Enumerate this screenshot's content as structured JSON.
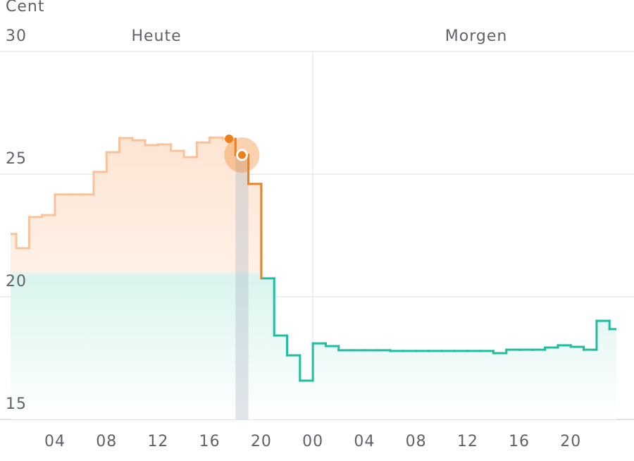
{
  "chart_data": {
    "type": "step",
    "y_label": "Cent",
    "day_labels": [
      "Heute",
      "Morgen"
    ],
    "x": [
      0,
      1,
      2,
      3,
      4,
      5,
      6,
      7,
      8,
      9,
      10,
      11,
      12,
      13,
      14,
      15,
      16,
      17,
      18,
      19,
      20,
      21,
      22,
      23,
      24,
      25,
      26,
      27,
      28,
      29,
      30,
      31,
      32,
      33,
      34,
      35,
      36,
      37,
      38,
      39,
      40,
      41,
      42,
      43,
      44,
      45,
      46,
      47
    ],
    "values": [
      22.56,
      21.98,
      23.25,
      23.33,
      24.17,
      24.17,
      24.17,
      25.09,
      25.89,
      26.47,
      26.38,
      26.18,
      26.21,
      25.95,
      25.69,
      26.29,
      26.49,
      26.44,
      25.78,
      24.6,
      20.75,
      18.42,
      17.61,
      16.58,
      18.1,
      17.99,
      17.82,
      17.82,
      17.82,
      17.82,
      17.79,
      17.79,
      17.79,
      17.79,
      17.79,
      17.79,
      17.79,
      17.79,
      17.7,
      17.84,
      17.84,
      17.84,
      17.93,
      18.02,
      17.96,
      17.84,
      19.02,
      18.68
    ],
    "colors": [
      "#f9c29b",
      "#f9c29b",
      "#f9c29b",
      "#f9c29b",
      "#f9c29b",
      "#f9c29b",
      "#f9c29b",
      "#f9c29b",
      "#f9c29b",
      "#f9c29b",
      "#f9c29b",
      "#f9c29b",
      "#f9c29b",
      "#f9c29b",
      "#f9c29b",
      "#f9c29b",
      "#f9c29b",
      "#f9c29b",
      "#f07f1a",
      "#f07f1a",
      "#1dbf9e",
      "#1dbf9e",
      "#1dbf9e",
      "#1dbf9e",
      "#1dbf9e",
      "#1dbf9e",
      "#1dbf9e",
      "#1dbf9e",
      "#1dbf9e",
      "#1dbf9e",
      "#1dbf9e",
      "#1dbf9e",
      "#1dbf9e",
      "#1dbf9e",
      "#1dbf9e",
      "#1dbf9e",
      "#1dbf9e",
      "#1dbf9e",
      "#1dbf9e",
      "#1dbf9e",
      "#1dbf9e",
      "#1dbf9e",
      "#1dbf9e",
      "#1dbf9e",
      "#1dbf9e",
      "#1dbf9e",
      "#1dbf9e",
      "#1dbf9e"
    ],
    "current_index": 18,
    "day_split": 24,
    "xlim": [
      -0.26,
      48.9
    ],
    "xticks": [
      {
        "value": 4,
        "label": "04"
      },
      {
        "value": 8,
        "label": "08"
      },
      12,
      16,
      20,
      {
        "value": 24,
        "label": "00"
      },
      {
        "value": 28,
        "label": "04"
      },
      {
        "value": 32,
        "label": "08"
      },
      {
        "value": 36,
        "label": "12"
      },
      {
        "value": 40,
        "label": "16"
      },
      {
        "value": 44,
        "label": "20"
      }
    ],
    "ylim": [
      15,
      30
    ],
    "yticks": [
      15,
      20,
      25,
      30
    ],
    "grid": true
  }
}
